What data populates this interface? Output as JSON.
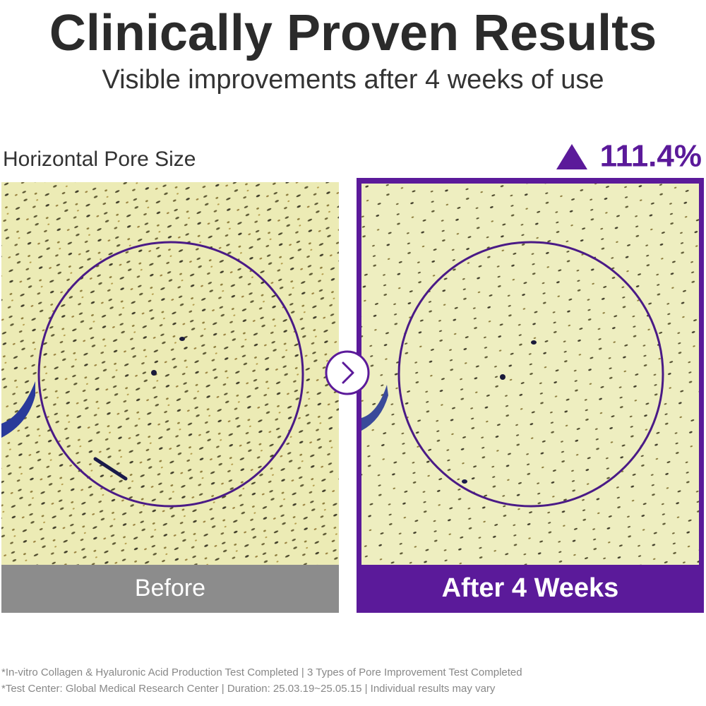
{
  "header": {
    "title": "Clinically Proven Results",
    "subtitle": "Visible improvements after 4 weeks of use"
  },
  "comparison": {
    "metric": "Horizontal Pore Size",
    "result": "111.4%",
    "before_label": "Before",
    "after_label": "After 4 Weeks"
  },
  "footnotes": [
    "*In-vitro Collagen & Hyaluronic Acid Production Test Completed | 3 Types of Pore Improvement Test Completed",
    "*Test Center: Global Medical Research Center  |  Duration: 25.03.19~25.05.15 | Individual results may vary"
  ]
}
